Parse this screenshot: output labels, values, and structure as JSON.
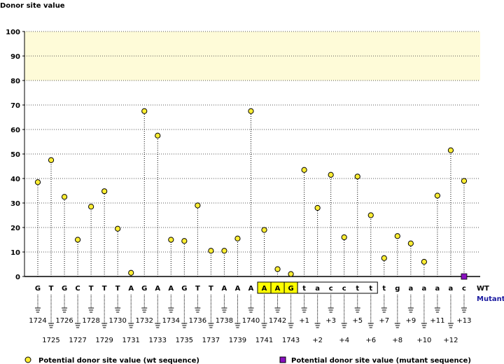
{
  "chart_data": {
    "type": "lollipop",
    "ylabel": "Donor site value",
    "ylim": [
      0,
      100
    ],
    "yticks": [
      0,
      10,
      20,
      30,
      40,
      50,
      60,
      70,
      80,
      90,
      100
    ],
    "highlight_band": [
      80,
      100
    ],
    "grid": true,
    "bases": [
      "G",
      "T",
      "G",
      "C",
      "T",
      "T",
      "T",
      "A",
      "G",
      "A",
      "A",
      "G",
      "T",
      "T",
      "A",
      "A",
      "A",
      "A",
      "A",
      "G",
      "t",
      "a",
      "c",
      "c",
      "t",
      "t",
      "t",
      "g",
      "a",
      "a",
      "a",
      "a",
      "c"
    ],
    "positions": [
      "1724",
      "1725",
      "1726",
      "1727",
      "1728",
      "1729",
      "1730",
      "1731",
      "1732",
      "1733",
      "1734",
      "1735",
      "1736",
      "1737",
      "1738",
      "1739",
      "1740",
      "1741",
      "1742",
      "1743",
      "+1",
      "+2",
      "+3",
      "+4",
      "+5",
      "+6",
      "+7",
      "+8",
      "+9",
      "+10",
      "+11",
      "+12",
      "+13"
    ],
    "series": [
      {
        "name": "Potential donor site value (wt sequence)",
        "values": [
          38.5,
          47.5,
          32.5,
          15,
          28.5,
          34.8,
          19.5,
          1.5,
          67.5,
          57.5,
          15,
          14.5,
          29,
          10.5,
          10.5,
          15.5,
          67.5,
          19,
          3,
          1,
          43.5,
          28,
          41.5,
          16,
          40.8,
          25,
          7.5,
          16.5,
          13.5,
          6,
          33,
          51.5,
          39
        ]
      },
      {
        "name": "Potential donor site value (mutant sequence)",
        "values": [
          {
            "index": 32,
            "value": 0
          }
        ]
      }
    ],
    "boxed_exon_range": [
      17,
      19
    ],
    "boxed_intron_range": [
      20,
      25
    ],
    "row_labels": {
      "wt": "WT",
      "mutant": "Mutant"
    }
  },
  "colors": {
    "wt_marker": "#ffee33",
    "mutant_marker": "#8a10c0",
    "band": "#fefbd8",
    "exon_box": "#ffff00",
    "mutant_label": "#1a1aa0"
  }
}
